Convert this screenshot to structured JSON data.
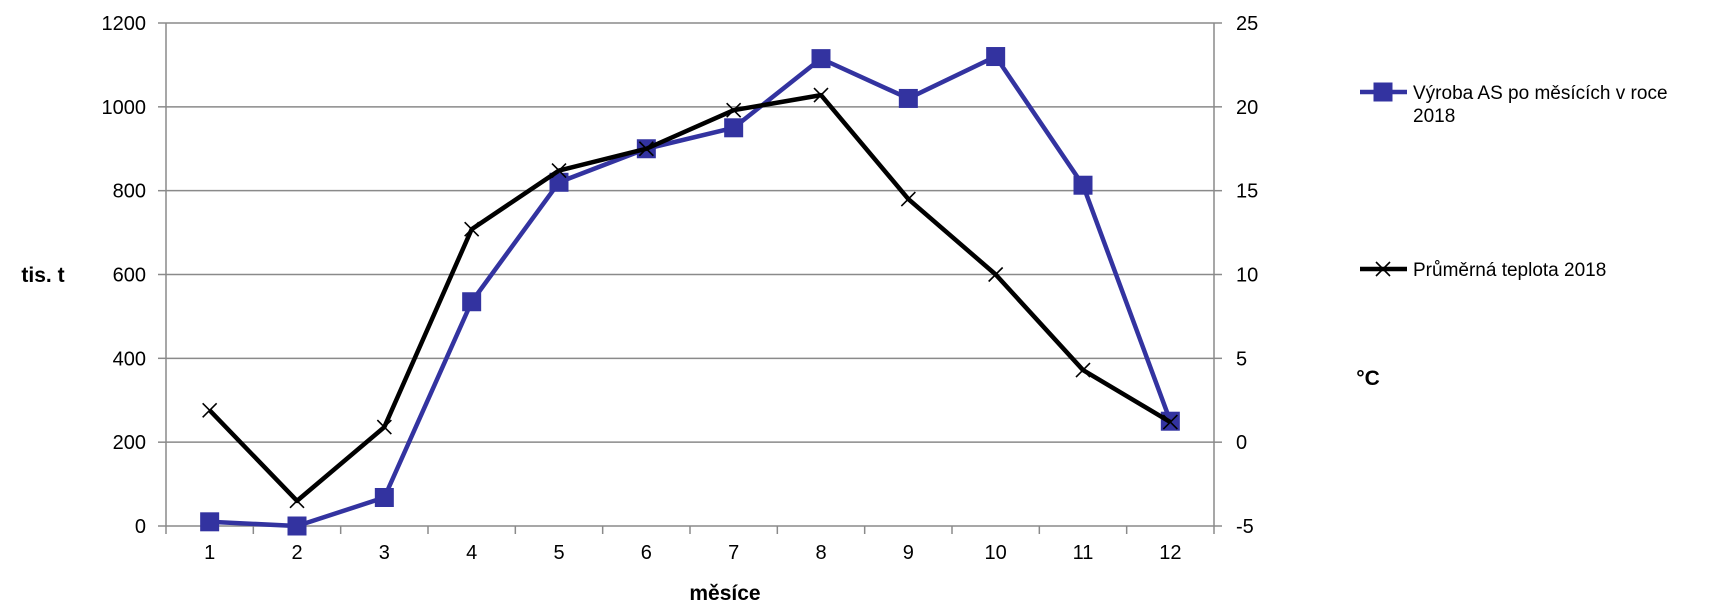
{
  "chart_data": {
    "type": "line",
    "title": "",
    "xlabel": "měsíce",
    "ylabel_left": "tis. t",
    "ylabel_right": "°C",
    "categories": [
      "1",
      "2",
      "3",
      "4",
      "5",
      "6",
      "7",
      "8",
      "9",
      "10",
      "11",
      "12"
    ],
    "ylim_left": [
      0,
      1200
    ],
    "yticks_left": [
      "0",
      "200",
      "400",
      "600",
      "800",
      "1000",
      "1200"
    ],
    "ylim_right": [
      -5,
      25
    ],
    "yticks_right": [
      "-5",
      "0",
      "5",
      "10",
      "15",
      "20",
      "25"
    ],
    "grid": "horizontal",
    "legend_position": "right",
    "series": [
      {
        "name": "Výroba AS po měsících v roce 2018",
        "name_lines": [
          "Výroba AS po měsících v roce",
          "2018"
        ],
        "axis": "left",
        "color": "#3333a0",
        "marker": "square",
        "values": [
          10,
          0,
          68,
          535,
          820,
          900,
          950,
          1115,
          1020,
          1120,
          813,
          250
        ]
      },
      {
        "name": "Průměrná teplota 2018",
        "name_lines": [
          "Průměrná teplota 2018"
        ],
        "axis": "right",
        "color": "#000000",
        "marker": "x",
        "values": [
          1.9,
          -3.5,
          0.9,
          12.7,
          16.2,
          17.5,
          19.8,
          20.7,
          14.5,
          10.0,
          4.3,
          1.2
        ]
      }
    ]
  }
}
